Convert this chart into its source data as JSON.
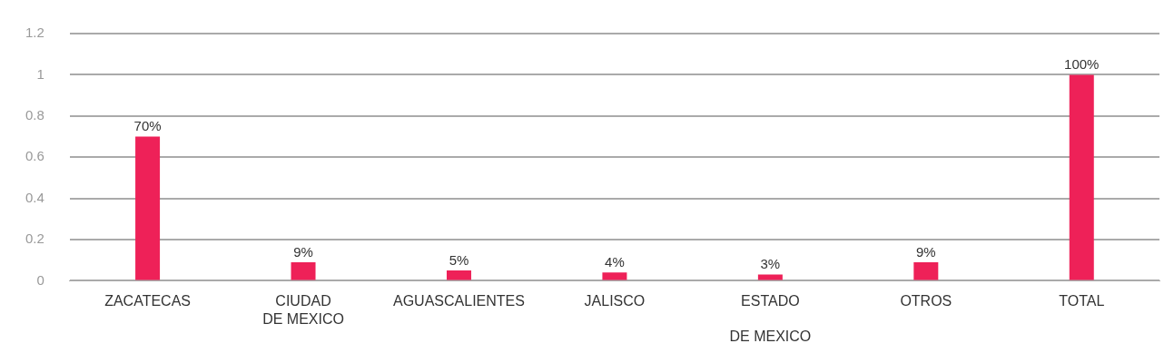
{
  "chart_data": {
    "type": "bar",
    "categories": [
      "ZACATECAS",
      "CIUDAD\nDE MEXICO",
      "AGUASCALIENTES",
      "JALISCO",
      "ESTADO\n\nDE MEXICO",
      "OTROS",
      "TOTAL"
    ],
    "values": [
      0.7,
      0.09,
      0.05,
      0.04,
      0.03,
      0.09,
      1
    ],
    "color": "#ee2158",
    "value_labels": [
      "70%",
      "9%",
      "5%",
      "4%",
      "3%",
      "9%",
      "100%"
    ],
    "ylim": [
      0,
      1.2
    ],
    "yticks": [
      0,
      0.2,
      0.4,
      0.6,
      0.8,
      1,
      1.2
    ],
    "grid": "y",
    "legend": false
  }
}
